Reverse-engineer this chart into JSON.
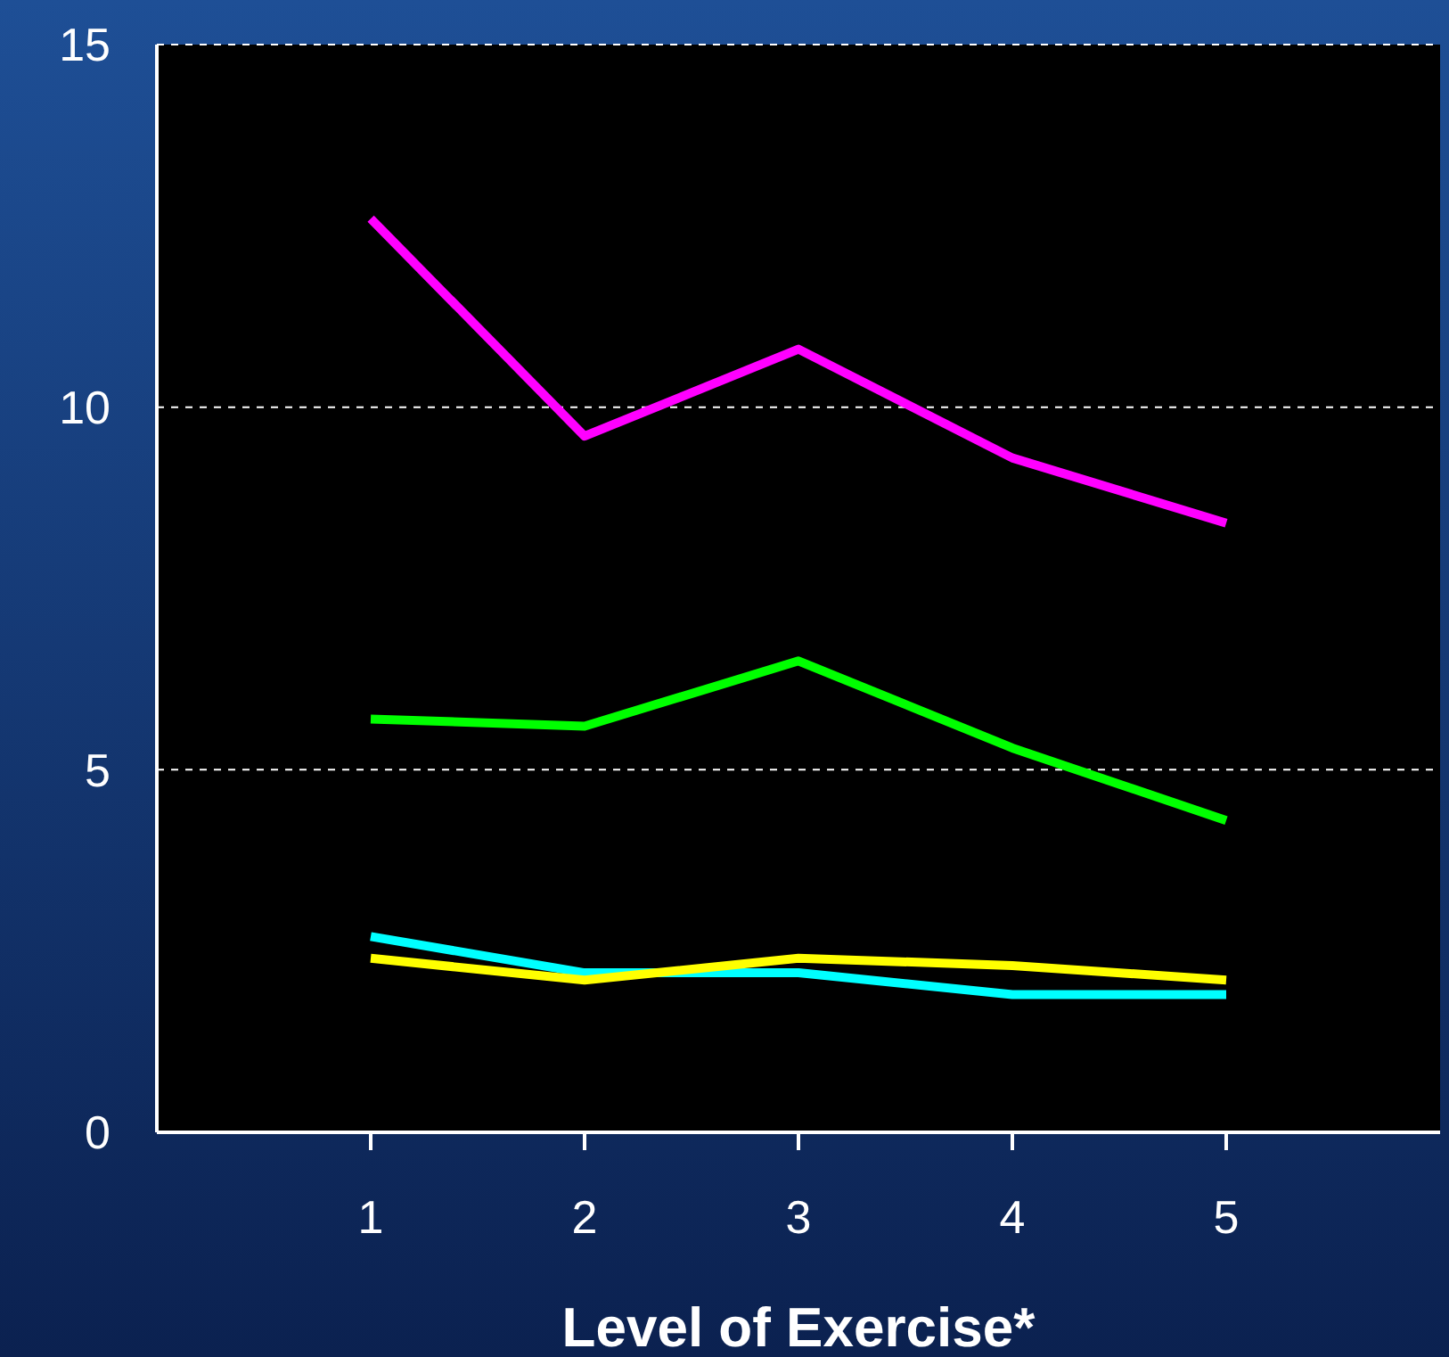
{
  "chart_data": {
    "type": "line",
    "xlabel": "Level of Exercise*",
    "x": [
      1,
      2,
      3,
      4,
      5
    ],
    "series": [
      {
        "color": "#ff00ff",
        "values": [
          12.6,
          9.6,
          10.8,
          9.3,
          8.4
        ]
      },
      {
        "color": "#00ff00",
        "values": [
          5.7,
          5.6,
          6.5,
          5.3,
          4.3
        ]
      },
      {
        "color": "#00ffff",
        "values": [
          2.7,
          2.2,
          2.2,
          1.9,
          1.9
        ]
      },
      {
        "color": "#ffff00",
        "values": [
          2.4,
          2.1,
          2.4,
          2.3,
          2.1
        ]
      }
    ],
    "xlim": [
      0,
      6
    ],
    "xticks": [
      1,
      2,
      3,
      4,
      5
    ],
    "ylim": [
      0,
      15
    ],
    "yticks": [
      0,
      5,
      10,
      15
    ],
    "grid": "y",
    "marker": "none"
  }
}
